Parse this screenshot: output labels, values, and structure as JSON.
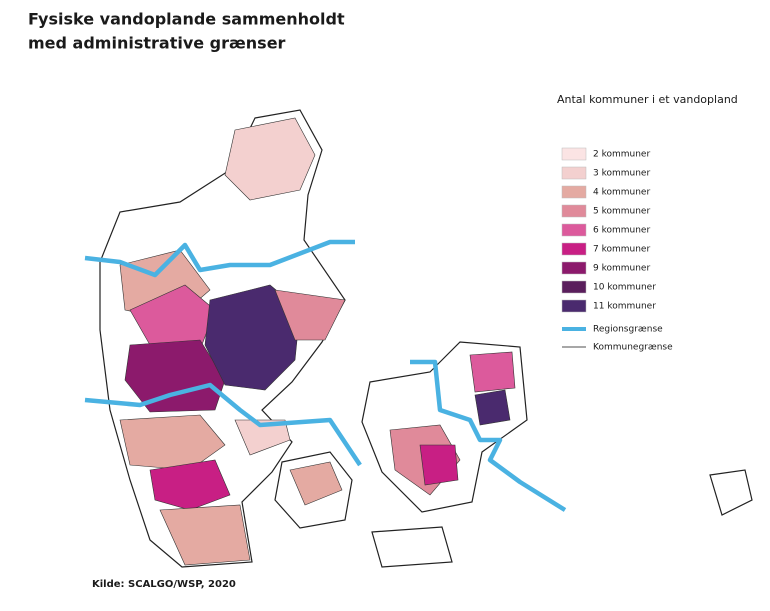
{
  "title": [
    "Fysiske vandoplande sammenholdt",
    "med administrative grænser"
  ],
  "legend": {
    "title": "Antal kommuner i et vandopland",
    "items": [
      {
        "label": "2 kommuner",
        "color": "#fbe4e4"
      },
      {
        "label": "3 kommuner",
        "color": "#f3d0cf"
      },
      {
        "label": "4 kommuner",
        "color": "#e4aaa2"
      },
      {
        "label": "5 kommuner",
        "color": "#e08a9a"
      },
      {
        "label": "6 kommuner",
        "color": "#dc5a9c"
      },
      {
        "label": "7 kommuner",
        "color": "#c81f84"
      },
      {
        "label": "9 kommuner",
        "color": "#8c1a6c"
      },
      {
        "label": "10 kommuner",
        "color": "#5a1e5c"
      },
      {
        "label": "11 kommuner",
        "color": "#4a2a6e"
      }
    ],
    "lines": [
      {
        "label": "Regionsgrænse",
        "color": "#4ab2e2"
      },
      {
        "label": "Kommunegrænse",
        "color": "#8a8a8a"
      }
    ]
  },
  "source": "Kilde: SCALGO/WSP, 2020"
}
